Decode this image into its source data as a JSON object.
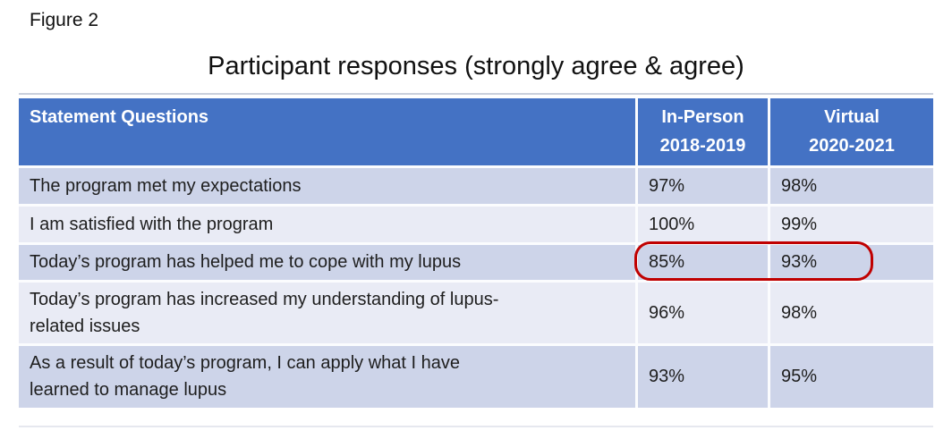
{
  "figure_label": "Figure 2",
  "title": "Participant responses (strongly agree & agree)",
  "table": {
    "headers": {
      "statement": "Statement Questions",
      "in_person": "In-Person\n2018-2019",
      "virtual": "Virtual\n2020-2021"
    },
    "rows": [
      {
        "statement": "The program met my expectations",
        "in_person": "97%",
        "virtual": "98%"
      },
      {
        "statement": "I am satisfied with the program",
        "in_person": "100%",
        "virtual": "99%"
      },
      {
        "statement": "Today’s program has helped me to cope with my lupus",
        "in_person": "85%",
        "virtual": "93%",
        "highlighted": true
      },
      {
        "statement": "Today’s program has increased my understanding of lupus-\nrelated issues",
        "in_person": "96%",
        "virtual": "98%"
      },
      {
        "statement": "As a result of today’s program, I can apply what I have\nlearned to manage lupus",
        "in_person": "93%",
        "virtual": "95%"
      }
    ]
  },
  "annotation": {
    "shape": "red-oval",
    "highlights": [
      "85%",
      "93%"
    ],
    "row": "Today’s program has helped me to cope with my lupus"
  },
  "colors": {
    "header-blue": "#4472c4",
    "band-dark": "#cdd4e9",
    "band-light": "#e9ebf5",
    "separator": "#fbfcfe",
    "hairline-top": "#c9cfdc",
    "hairline-bottom": "#e6e8ef",
    "annotation-red": "#c00000",
    "text": "#1e1e1e"
  },
  "chart_data": {
    "type": "table",
    "figure_label": "Figure 2",
    "title": "Participant responses (strongly agree & agree)",
    "categories": [
      "The program met my expectations",
      "I am satisfied with the program",
      "Today’s program has helped me to cope with my lupus",
      "Today’s program has increased my understanding of lupus-related issues",
      "As a result of today’s program, I can apply what I have learned to manage lupus"
    ],
    "series": [
      {
        "name": "In-Person 2018-2019",
        "unit": "%",
        "values": [
          97,
          100,
          85,
          96,
          93
        ]
      },
      {
        "name": "Virtual 2020-2021",
        "unit": "%",
        "values": [
          98,
          99,
          93,
          98,
          95
        ]
      }
    ],
    "annotations": [
      {
        "type": "red-oval",
        "target_category_index": 2,
        "highlighted_values": [
          85,
          93
        ]
      }
    ],
    "legend_position": "column-headers",
    "grid": false
  }
}
